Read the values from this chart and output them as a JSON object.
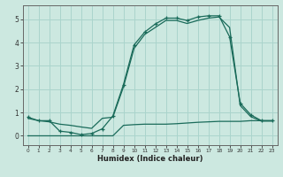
{
  "xlabel": "Humidex (Indice chaleur)",
  "bg_color": "#cce8e0",
  "line_color": "#1a6b5a",
  "grid_color": "#aad4cc",
  "xlim": [
    -0.5,
    23.5
  ],
  "ylim": [
    -0.4,
    5.6
  ],
  "xticks": [
    0,
    1,
    2,
    3,
    4,
    5,
    6,
    7,
    8,
    9,
    10,
    11,
    12,
    13,
    14,
    15,
    16,
    17,
    18,
    19,
    20,
    21,
    22,
    23
  ],
  "yticks": [
    0,
    1,
    2,
    3,
    4,
    5
  ],
  "line1_x": [
    0,
    1,
    2,
    3,
    4,
    5,
    6,
    7,
    8,
    9,
    10,
    11,
    12,
    13,
    14,
    15,
    16,
    17,
    18,
    19,
    20,
    21,
    22,
    23
  ],
  "line1_y": [
    0.8,
    0.65,
    0.65,
    0.2,
    0.15,
    0.05,
    0.1,
    0.3,
    0.85,
    2.2,
    3.9,
    4.45,
    4.8,
    5.05,
    5.05,
    4.95,
    5.1,
    5.15,
    5.15,
    4.25,
    1.4,
    0.9,
    0.65,
    0.65
  ],
  "line2_x": [
    0,
    1,
    2,
    3,
    4,
    5,
    6,
    7,
    8,
    9,
    10,
    11,
    12,
    13,
    14,
    15,
    16,
    17,
    18,
    19,
    20,
    21,
    22,
    23
  ],
  "line2_y": [
    0.75,
    0.65,
    0.6,
    0.5,
    0.45,
    0.38,
    0.32,
    0.75,
    0.8,
    2.1,
    3.75,
    4.35,
    4.65,
    4.95,
    4.95,
    4.82,
    4.95,
    5.05,
    5.1,
    4.65,
    1.3,
    0.82,
    0.63,
    0.63
  ],
  "line3_x": [
    0,
    1,
    2,
    3,
    4,
    5,
    6,
    7,
    8,
    9,
    10,
    11,
    12,
    13,
    14,
    15,
    16,
    17,
    18,
    19,
    20,
    21,
    22,
    23
  ],
  "line3_y": [
    0.0,
    0.0,
    0.0,
    0.0,
    0.0,
    0.0,
    0.0,
    0.0,
    0.0,
    0.45,
    0.48,
    0.5,
    0.5,
    0.5,
    0.52,
    0.55,
    0.58,
    0.6,
    0.62,
    0.62,
    0.62,
    0.65,
    0.65,
    0.65
  ]
}
